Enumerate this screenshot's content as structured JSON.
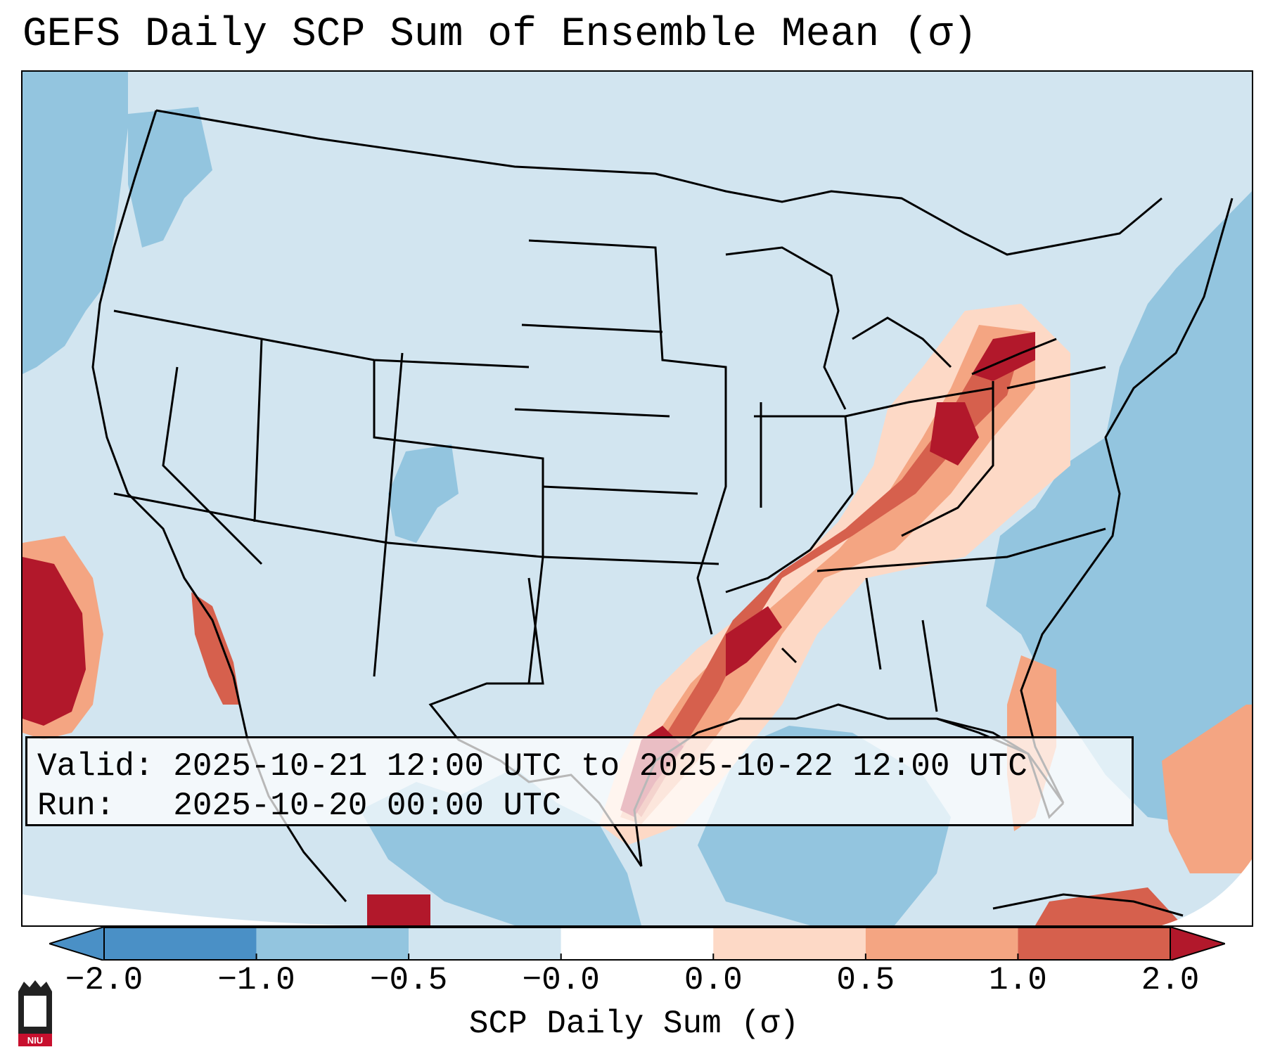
{
  "title": "GEFS Daily SCP Sum of Ensemble Mean (σ)",
  "info": {
    "valid_label": "Valid:",
    "valid_value": "2025-10-21 12:00 UTC to 2025-10-22 12:00 UTC",
    "run_label": "Run:",
    "run_value": "2025-10-20 00:00 UTC"
  },
  "colorbar": {
    "label": "SCP Daily Sum (σ)",
    "ticks": [
      "−2.0",
      "−1.0",
      "−0.5",
      "−0.0",
      "0.0",
      "0.5",
      "1.0",
      "2.0"
    ],
    "colors": [
      "#4a90c6",
      "#93c5df",
      "#d1e5f0",
      "#ffffff",
      "#fdd9c6",
      "#f4a582",
      "#d6604d",
      "#b2182b"
    ],
    "extend": "both"
  },
  "legend_colors": {
    "ocean_low": "#93c5df",
    "land_neutral": "#d2e5f0",
    "light_positive": "#fdd9c6",
    "medium_positive": "#f4a582",
    "high_positive": "#d6604d",
    "max_positive": "#b2182b"
  },
  "logo": {
    "text": "NIU",
    "color": "#c8102e"
  }
}
